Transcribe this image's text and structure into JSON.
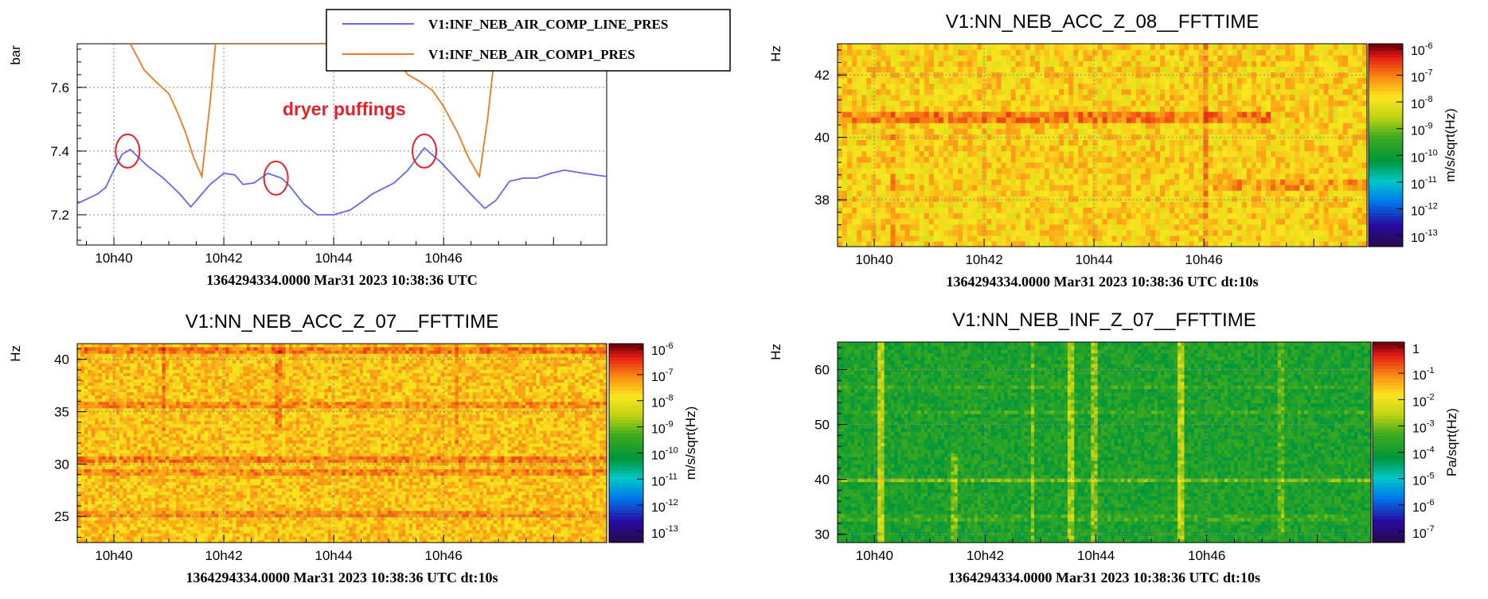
{
  "chart_data": [
    {
      "type": "line",
      "ylabel": "bar",
      "xlim": [
        9.333,
        18.967
      ],
      "ylim": [
        7.105,
        7.737
      ],
      "x_ticks": [
        {
          "value": 10,
          "label": "10h40"
        },
        {
          "value": 12,
          "label": "10h42"
        },
        {
          "value": 14,
          "label": "10h44"
        },
        {
          "value": 16,
          "label": "10h46"
        }
      ],
      "y_ticks": [
        {
          "value": 7.2,
          "label": "7.2"
        },
        {
          "value": 7.4,
          "label": "7.4"
        },
        {
          "value": 7.6,
          "label": "7.6"
        }
      ],
      "grid": true,
      "legend_position": "top-right",
      "time_label": "1364294334.0000 Mar31 2023 10:38:36 UTC",
      "annotation": {
        "text": "dryer puffings",
        "color": "#e8202a"
      },
      "circles_at": [
        {
          "x": 10.25,
          "y": 7.4
        },
        {
          "x": 12.95,
          "y": 7.315
        },
        {
          "x": 15.65,
          "y": 7.4
        }
      ],
      "series": [
        {
          "name": "V1:INF_NEB_AIR_COMP_LINE_PRES",
          "color": "#6666ee",
          "points": [
            [
              9.333,
              7.235
            ],
            [
              9.7,
              7.265
            ],
            [
              9.85,
              7.285
            ],
            [
              10.0,
              7.34
            ],
            [
              10.15,
              7.39
            ],
            [
              10.3,
              7.405
            ],
            [
              10.6,
              7.355
            ],
            [
              10.9,
              7.315
            ],
            [
              11.2,
              7.265
            ],
            [
              11.4,
              7.225
            ],
            [
              11.55,
              7.255
            ],
            [
              11.75,
              7.295
            ],
            [
              12.0,
              7.33
            ],
            [
              12.2,
              7.325
            ],
            [
              12.35,
              7.295
            ],
            [
              12.55,
              7.3
            ],
            [
              12.8,
              7.33
            ],
            [
              13.05,
              7.315
            ],
            [
              13.2,
              7.29
            ],
            [
              13.45,
              7.235
            ],
            [
              13.7,
              7.2
            ],
            [
              14.0,
              7.2
            ],
            [
              14.3,
              7.215
            ],
            [
              14.55,
              7.245
            ],
            [
              14.7,
              7.265
            ],
            [
              15.1,
              7.3
            ],
            [
              15.35,
              7.34
            ],
            [
              15.65,
              7.41
            ],
            [
              15.95,
              7.365
            ],
            [
              16.3,
              7.3
            ],
            [
              16.55,
              7.255
            ],
            [
              16.75,
              7.22
            ],
            [
              16.95,
              7.245
            ],
            [
              17.2,
              7.305
            ],
            [
              17.45,
              7.315
            ],
            [
              17.7,
              7.315
            ],
            [
              17.95,
              7.33
            ],
            [
              18.2,
              7.34
            ],
            [
              18.55,
              7.33
            ],
            [
              18.967,
              7.32
            ]
          ]
        },
        {
          "name": "V1:INF_NEB_AIR_COMP1_PRES",
          "color": "#f07820",
          "points": [
            [
              10.3,
              7.737
            ],
            [
              10.55,
              7.655
            ],
            [
              10.75,
              7.62
            ],
            [
              11.0,
              7.58
            ],
            [
              11.15,
              7.525
            ],
            [
              11.3,
              7.46
            ],
            [
              11.45,
              7.38
            ],
            [
              11.6,
              7.32
            ],
            [
              11.75,
              7.55
            ],
            [
              11.85,
              7.737
            ],
            [
              18.967,
              7.737
            ]
          ]
        },
        {
          "name": "V1:INF_NEB_AIR_COMP1_PRES",
          "color": "#f07820",
          "points": [
            [
              15.0,
              7.737
            ],
            [
              15.15,
              7.685
            ],
            [
              15.35,
              7.64
            ],
            [
              15.55,
              7.62
            ],
            [
              15.8,
              7.59
            ],
            [
              16.0,
              7.54
            ],
            [
              16.25,
              7.46
            ],
            [
              16.45,
              7.38
            ],
            [
              16.55,
              7.35
            ],
            [
              16.65,
              7.32
            ],
            [
              16.8,
              7.5
            ],
            [
              16.95,
              7.737
            ]
          ]
        }
      ]
    },
    {
      "type": "heatmap",
      "title": "V1:NN_NEB_ACC_Z_08__FFTTIME",
      "ylabel": "Hz",
      "xlim": [
        9.333,
        18.967
      ],
      "ylim": [
        36.5,
        43
      ],
      "x_ticks": [
        {
          "value": 10,
          "label": "10h40"
        },
        {
          "value": 12,
          "label": "10h42"
        },
        {
          "value": 14,
          "label": "10h44"
        },
        {
          "value": 16,
          "label": "10h46"
        }
      ],
      "y_ticks": [
        {
          "value": 38,
          "label": "38"
        },
        {
          "value": 40,
          "label": "40"
        },
        {
          "value": 42,
          "label": "42"
        }
      ],
      "colorbar": {
        "label": "m/s/sqrt(Hz)",
        "ticks": [
          {
            "base": "10",
            "exp": "-6"
          },
          {
            "base": "10",
            "exp": "-7"
          },
          {
            "base": "10",
            "exp": "-8"
          },
          {
            "base": "10",
            "exp": "-9"
          },
          {
            "base": "10",
            "exp": "-10"
          },
          {
            "base": "10",
            "exp": "-11"
          },
          {
            "base": "10",
            "exp": "-12"
          },
          {
            "base": "10",
            "exp": "-13"
          }
        ]
      },
      "time_label": "1364294334.0000 Mar31 2023 10:38:36 UTC dt:10s"
    },
    {
      "type": "heatmap",
      "title": "V1:NN_NEB_ACC_Z_07__FFTTIME",
      "ylabel": "Hz",
      "xlim": [
        9.333,
        18.967
      ],
      "ylim": [
        22.5,
        41.5
      ],
      "x_ticks": [
        {
          "value": 10,
          "label": "10h40"
        },
        {
          "value": 12,
          "label": "10h42"
        },
        {
          "value": 14,
          "label": "10h44"
        },
        {
          "value": 16,
          "label": "10h46"
        }
      ],
      "y_ticks": [
        {
          "value": 25,
          "label": "25"
        },
        {
          "value": 30,
          "label": "30"
        },
        {
          "value": 35,
          "label": "35"
        },
        {
          "value": 40,
          "label": "40"
        }
      ],
      "colorbar": {
        "label": "m/s/sqrt(Hz)",
        "ticks": [
          {
            "base": "10",
            "exp": "-6"
          },
          {
            "base": "10",
            "exp": "-7"
          },
          {
            "base": "10",
            "exp": "-8"
          },
          {
            "base": "10",
            "exp": "-9"
          },
          {
            "base": "10",
            "exp": "-10"
          },
          {
            "base": "10",
            "exp": "-11"
          },
          {
            "base": "10",
            "exp": "-12"
          },
          {
            "base": "10",
            "exp": "-13"
          }
        ]
      },
      "time_label": "1364294334.0000 Mar31 2023 10:38:36 UTC dt:10s"
    },
    {
      "type": "heatmap",
      "title": "V1:NN_NEB_INF_Z_07__FFTTIME",
      "ylabel": "Hz",
      "xlim": [
        9.333,
        18.967
      ],
      "ylim": [
        28.5,
        65
      ],
      "x_ticks": [
        {
          "value": 10,
          "label": "10h40"
        },
        {
          "value": 12,
          "label": "10h42"
        },
        {
          "value": 14,
          "label": "10h44"
        },
        {
          "value": 16,
          "label": "10h46"
        }
      ],
      "y_ticks": [
        {
          "value": 30,
          "label": "30"
        },
        {
          "value": 40,
          "label": "40"
        },
        {
          "value": 50,
          "label": "50"
        },
        {
          "value": 60,
          "label": "60"
        }
      ],
      "colorbar": {
        "label": "Pa/sqrt(Hz)",
        "ticks": [
          {
            "base": "1",
            "exp": ""
          },
          {
            "base": "10",
            "exp": "-1"
          },
          {
            "base": "10",
            "exp": "-2"
          },
          {
            "base": "10",
            "exp": "-3"
          },
          {
            "base": "10",
            "exp": "-4"
          },
          {
            "base": "10",
            "exp": "-5"
          },
          {
            "base": "10",
            "exp": "-6"
          },
          {
            "base": "10",
            "exp": "-7"
          }
        ]
      },
      "time_label": "1364294334.0000 Mar31 2023 10:38:36 UTC dt:10s"
    }
  ]
}
